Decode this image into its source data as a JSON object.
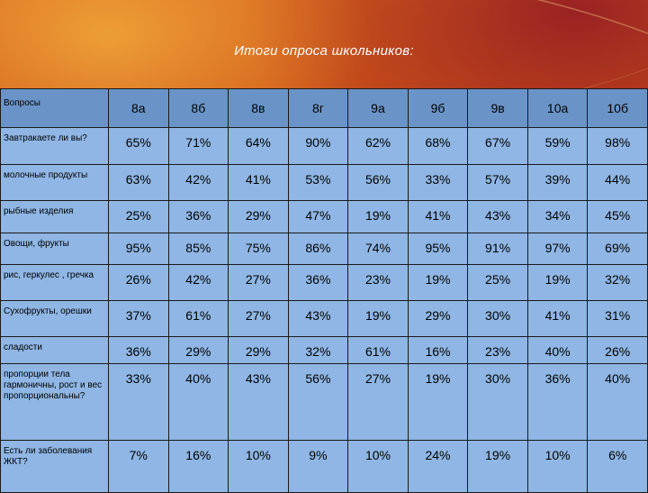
{
  "title": "Итоги опроса школьников:",
  "table": {
    "header_label": "Вопросы",
    "classes": [
      "8а",
      "8б",
      "8в",
      "8г",
      "9а",
      "9б",
      "9в",
      "10а",
      "10б"
    ],
    "rows": [
      {
        "question": "Завтракаете ли вы?",
        "values": [
          "65%",
          "71%",
          "64%",
          "90%",
          "62%",
          "68%",
          "67%",
          "59%",
          "98%"
        ]
      },
      {
        "question": "молочные продукты",
        "values": [
          "63%",
          "42%",
          "41%",
          "53%",
          "56%",
          "33%",
          "57%",
          "39%",
          "44%"
        ]
      },
      {
        "question": "рыбные изделия",
        "values": [
          "25%",
          "36%",
          "29%",
          "47%",
          "19%",
          "41%",
          "43%",
          "34%",
          "45%"
        ]
      },
      {
        "question": "Овощи, фрукты",
        "values": [
          "95%",
          "85%",
          "75%",
          "86%",
          "74%",
          "95%",
          "91%",
          "97%",
          "69%"
        ]
      },
      {
        "question": "рис, геркулес , гречка",
        "values": [
          "26%",
          "42%",
          "27%",
          "36%",
          "23%",
          "19%",
          "25%",
          "19%",
          "32%"
        ]
      },
      {
        "question": "Сухофрукты, орешки",
        "values": [
          "37%",
          "61%",
          "27%",
          "43%",
          "19%",
          "29%",
          "30%",
          "41%",
          "31%"
        ]
      },
      {
        "question": "сладости",
        "values": [
          "36%",
          "29%",
          "29%",
          "32%",
          "61%",
          "16%",
          "23%",
          "40%",
          "26%"
        ]
      },
      {
        "question": "пропорции тела гармоничны, рост и вес пропорциональны?",
        "values": [
          "33%",
          "40%",
          "43%",
          "56%",
          "27%",
          "19%",
          "30%",
          "36%",
          "40%"
        ]
      },
      {
        "question": "Есть ли заболевания ЖКТ?",
        "values": [
          "7%",
          "16%",
          "10%",
          "9%",
          "10%",
          "24%",
          "19%",
          "10%",
          "6%"
        ]
      }
    ]
  }
}
